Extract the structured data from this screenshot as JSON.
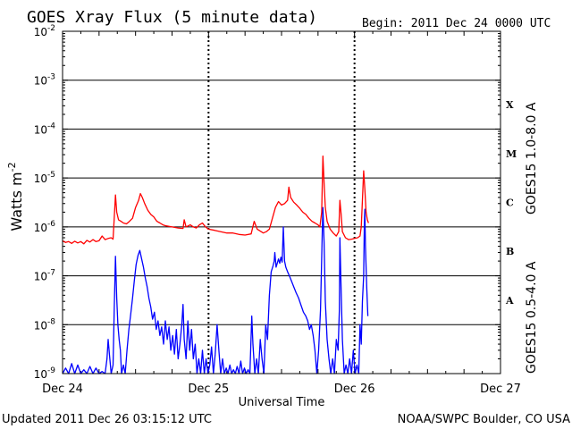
{
  "title": "GOES Xray Flux (5 minute data)",
  "begin": "Begin:  2011 Dec 24 0000 UTC",
  "updated": "Updated 2011 Dec 26 03:15:12 UTC",
  "credit": "NOAA/SWPC Boulder, CO USA",
  "colors": {
    "long_channel": "#ff0000",
    "short_channel": "#0000ff",
    "axes": "#000000"
  },
  "chart_data": {
    "type": "line",
    "title": "GOES Xray Flux (5 minute data)",
    "xlabel": "Universal Time",
    "ylabel": "Watts m",
    "ylabel_sup": "-2",
    "yscale": "log",
    "ylim": [
      1e-09,
      0.01
    ],
    "xlim_hours": [
      0,
      72
    ],
    "x_unit": "hours since 2011 Dec 24 0000 UTC",
    "y_ticks": [
      {
        "value": 1e-09,
        "base": "10",
        "exp": "-9"
      },
      {
        "value": 1e-08,
        "base": "10",
        "exp": "-8"
      },
      {
        "value": 1e-07,
        "base": "10",
        "exp": "-7"
      },
      {
        "value": 1e-06,
        "base": "10",
        "exp": "-6"
      },
      {
        "value": 1e-05,
        "base": "10",
        "exp": "-5"
      },
      {
        "value": 0.0001,
        "base": "10",
        "exp": "-4"
      },
      {
        "value": 0.001,
        "base": "10",
        "exp": "-3"
      },
      {
        "value": 0.01,
        "base": "10",
        "exp": "-2"
      }
    ],
    "x_ticks": [
      {
        "hour": 0,
        "label": "Dec 24"
      },
      {
        "hour": 24,
        "label": "Dec 25"
      },
      {
        "hour": 48,
        "label": "Dec 26"
      },
      {
        "hour": 72,
        "label": "Dec 27"
      }
    ],
    "flare_classes": [
      {
        "label": "A",
        "value": 1e-08
      },
      {
        "label": "B",
        "value": 1e-07
      },
      {
        "label": "C",
        "value": 1e-06
      },
      {
        "label": "M",
        "value": 1e-05
      },
      {
        "label": "X",
        "value": 0.0001
      }
    ],
    "grid": "horizontal lines at each decade; dashed day separators",
    "series": [
      {
        "name": "GOES15 1.0-8.0 A",
        "color": "#ff0000",
        "points": [
          [
            0.0,
            5.2e-07
          ],
          [
            0.5,
            4.8e-07
          ],
          [
            1.0,
            5e-07
          ],
          [
            1.5,
            4.6e-07
          ],
          [
            2.0,
            5.1e-07
          ],
          [
            2.5,
            4.7e-07
          ],
          [
            3.0,
            5e-07
          ],
          [
            3.5,
            4.5e-07
          ],
          [
            4.0,
            5.3e-07
          ],
          [
            4.5,
            4.9e-07
          ],
          [
            5.0,
            5.5e-07
          ],
          [
            5.5,
            5e-07
          ],
          [
            6.0,
            5.2e-07
          ],
          [
            6.5,
            6.5e-07
          ],
          [
            7.0,
            5.5e-07
          ],
          [
            7.5,
            5.8e-07
          ],
          [
            8.0,
            6e-07
          ],
          [
            8.3,
            5.6e-07
          ],
          [
            8.5,
            1.5e-06
          ],
          [
            8.7,
            4.5e-06
          ],
          [
            8.9,
            2e-06
          ],
          [
            9.2,
            1.4e-06
          ],
          [
            9.6,
            1.3e-06
          ],
          [
            10.0,
            1.2e-06
          ],
          [
            10.5,
            1.15e-06
          ],
          [
            11.0,
            1.3e-06
          ],
          [
            11.5,
            1.5e-06
          ],
          [
            12.0,
            2.5e-06
          ],
          [
            12.5,
            3.5e-06
          ],
          [
            12.8,
            4.8e-06
          ],
          [
            13.1,
            4e-06
          ],
          [
            13.5,
            3e-06
          ],
          [
            14.0,
            2.2e-06
          ],
          [
            14.5,
            1.8e-06
          ],
          [
            15.0,
            1.6e-06
          ],
          [
            15.5,
            1.3e-06
          ],
          [
            16.0,
            1.2e-06
          ],
          [
            16.5,
            1.1e-06
          ],
          [
            17.0,
            1.05e-06
          ],
          [
            18.0,
            1e-06
          ],
          [
            19.0,
            9.5e-07
          ],
          [
            19.8,
            9.3e-07
          ],
          [
            20.0,
            1.4e-06
          ],
          [
            20.3,
            1e-06
          ],
          [
            21.0,
            1.1e-06
          ],
          [
            21.5,
            1e-06
          ],
          [
            22.0,
            9.5e-07
          ],
          [
            22.5,
            1.1e-06
          ],
          [
            23.0,
            1.2e-06
          ],
          [
            23.5,
            1e-06
          ],
          [
            24.0,
            9e-07
          ],
          [
            25.0,
            8.5e-07
          ],
          [
            26.0,
            8e-07
          ],
          [
            27.0,
            7.5e-07
          ],
          [
            28.0,
            7.5e-07
          ],
          [
            29.0,
            7e-07
          ],
          [
            30.0,
            6.8e-07
          ],
          [
            31.0,
            7.2e-07
          ],
          [
            31.5,
            1.3e-06
          ],
          [
            32.0,
            9e-07
          ],
          [
            33.0,
            7.5e-07
          ],
          [
            33.5,
            8e-07
          ],
          [
            34.0,
            9e-07
          ],
          [
            34.5,
            1.5e-06
          ],
          [
            35.0,
            2.5e-06
          ],
          [
            35.5,
            3.3e-06
          ],
          [
            36.0,
            2.8e-06
          ],
          [
            36.5,
            3e-06
          ],
          [
            37.0,
            3.5e-06
          ],
          [
            37.2,
            6.5e-06
          ],
          [
            37.5,
            4e-06
          ],
          [
            38.0,
            3.2e-06
          ],
          [
            38.5,
            2.8e-06
          ],
          [
            39.0,
            2.4e-06
          ],
          [
            39.5,
            2e-06
          ],
          [
            40.0,
            1.8e-06
          ],
          [
            40.5,
            1.5e-06
          ],
          [
            41.0,
            1.3e-06
          ],
          [
            41.5,
            1.2e-06
          ],
          [
            42.0,
            1.1e-06
          ],
          [
            42.3,
            1e-06
          ],
          [
            42.6,
            2e-06
          ],
          [
            42.8,
            2.8e-05
          ],
          [
            43.0,
            8e-06
          ],
          [
            43.2,
            2.5e-06
          ],
          [
            43.5,
            1.3e-06
          ],
          [
            44.0,
            9e-07
          ],
          [
            44.5,
            7.5e-07
          ],
          [
            45.0,
            6.5e-07
          ],
          [
            45.4,
            8e-07
          ],
          [
            45.6,
            3.5e-06
          ],
          [
            45.8,
            1.8e-06
          ],
          [
            46.0,
            8e-07
          ],
          [
            46.5,
            6e-07
          ],
          [
            47.0,
            5.5e-07
          ],
          [
            47.5,
            5.6e-07
          ],
          [
            48.0,
            5.8e-07
          ],
          [
            48.5,
            6e-07
          ],
          [
            48.9,
            6.5e-07
          ],
          [
            49.1,
            1e-06
          ],
          [
            49.3,
            3.5e-06
          ],
          [
            49.5,
            1.4e-05
          ],
          [
            49.7,
            6e-06
          ],
          [
            49.9,
            2e-06
          ],
          [
            50.1,
            1.4e-06
          ],
          [
            50.3,
            1.2e-06
          ]
        ]
      },
      {
        "name": "GOES15 0.5-4.0 A",
        "color": "#0000ff",
        "points": [
          [
            0.0,
            1e-09
          ],
          [
            0.5,
            1.3e-09
          ],
          [
            1.0,
            1e-09
          ],
          [
            1.5,
            1.6e-09
          ],
          [
            2.0,
            1e-09
          ],
          [
            2.5,
            1.5e-09
          ],
          [
            3.0,
            1e-09
          ],
          [
            3.5,
            1.2e-09
          ],
          [
            4.0,
            1e-09
          ],
          [
            4.5,
            1.4e-09
          ],
          [
            5.0,
            1e-09
          ],
          [
            5.5,
            1.3e-09
          ],
          [
            6.0,
            1e-09
          ],
          [
            6.5,
            1.1e-09
          ],
          [
            7.0,
            1e-09
          ],
          [
            7.3,
            2e-09
          ],
          [
            7.5,
            5e-09
          ],
          [
            7.7,
            2.5e-09
          ],
          [
            8.0,
            1e-09
          ],
          [
            8.3,
            1.5e-09
          ],
          [
            8.5,
            2e-08
          ],
          [
            8.7,
            2.5e-07
          ],
          [
            8.9,
            3.5e-08
          ],
          [
            9.1,
            1e-08
          ],
          [
            9.3,
            5e-09
          ],
          [
            9.5,
            3e-09
          ],
          [
            9.7,
            1e-09
          ],
          [
            10.0,
            1.5e-09
          ],
          [
            10.3,
            1e-09
          ],
          [
            10.6,
            3e-09
          ],
          [
            10.9,
            8e-09
          ],
          [
            11.2,
            1.6e-08
          ],
          [
            11.5,
            3.5e-08
          ],
          [
            11.8,
            8e-08
          ],
          [
            12.1,
            1.7e-07
          ],
          [
            12.4,
            2.6e-07
          ],
          [
            12.7,
            3.3e-07
          ],
          [
            13.0,
            2.2e-07
          ],
          [
            13.3,
            1.5e-07
          ],
          [
            13.6,
            9e-08
          ],
          [
            13.9,
            6e-08
          ],
          [
            14.2,
            3.5e-08
          ],
          [
            14.5,
            2.3e-08
          ],
          [
            14.8,
            1.3e-08
          ],
          [
            15.1,
            1.8e-08
          ],
          [
            15.4,
            8e-09
          ],
          [
            15.7,
            1.2e-08
          ],
          [
            16.0,
            6e-09
          ],
          [
            16.3,
            9e-09
          ],
          [
            16.6,
            4e-09
          ],
          [
            16.9,
            1.2e-08
          ],
          [
            17.2,
            5e-09
          ],
          [
            17.5,
            9e-09
          ],
          [
            17.8,
            3e-09
          ],
          [
            18.1,
            6e-09
          ],
          [
            18.4,
            2.5e-09
          ],
          [
            18.7,
            8e-09
          ],
          [
            19.0,
            2e-09
          ],
          [
            19.3,
            4e-09
          ],
          [
            19.6,
            1e-08
          ],
          [
            19.8,
            2.6e-08
          ],
          [
            20.0,
            5e-09
          ],
          [
            20.3,
            2e-09
          ],
          [
            20.6,
            1.2e-08
          ],
          [
            20.9,
            3e-09
          ],
          [
            21.2,
            8e-09
          ],
          [
            21.5,
            2e-09
          ],
          [
            21.8,
            4e-09
          ],
          [
            22.1,
            1e-09
          ],
          [
            22.4,
            2e-09
          ],
          [
            22.7,
            1e-09
          ],
          [
            23.0,
            3e-09
          ],
          [
            23.3,
            1e-09
          ],
          [
            23.6,
            2e-09
          ],
          [
            23.9,
            1e-09
          ],
          [
            24.2,
            1.5e-09
          ],
          [
            24.5,
            3.5e-09
          ],
          [
            24.8,
            1e-09
          ],
          [
            25.1,
            2.5e-09
          ],
          [
            25.4,
            1e-08
          ],
          [
            25.7,
            3e-09
          ],
          [
            26.0,
            1e-09
          ],
          [
            26.3,
            2e-09
          ],
          [
            26.6,
            1e-09
          ],
          [
            26.9,
            1.3e-09
          ],
          [
            27.2,
            1e-09
          ],
          [
            27.5,
            1.5e-09
          ],
          [
            27.8,
            1e-09
          ],
          [
            28.1,
            1.2e-09
          ],
          [
            28.4,
            1e-09
          ],
          [
            28.7,
            1.4e-09
          ],
          [
            29.0,
            1e-09
          ],
          [
            29.3,
            1.8e-09
          ],
          [
            29.6,
            1e-09
          ],
          [
            29.9,
            1.3e-09
          ],
          [
            30.2,
            1e-09
          ],
          [
            30.5,
            1.2e-09
          ],
          [
            30.8,
            1e-09
          ],
          [
            31.1,
            1.5e-08
          ],
          [
            31.3,
            4e-09
          ],
          [
            31.6,
            1e-09
          ],
          [
            31.9,
            2e-09
          ],
          [
            32.2,
            1e-09
          ],
          [
            32.5,
            5e-09
          ],
          [
            32.8,
            2e-09
          ],
          [
            33.1,
            1e-09
          ],
          [
            33.4,
            1e-08
          ],
          [
            33.7,
            5e-09
          ],
          [
            34.0,
            4e-08
          ],
          [
            34.3,
            1.2e-07
          ],
          [
            34.6,
            1.6e-07
          ],
          [
            34.8,
            2e-07
          ],
          [
            34.9,
            3e-07
          ],
          [
            35.1,
            1.5e-07
          ],
          [
            35.3,
            1.8e-07
          ],
          [
            35.5,
            2.2e-07
          ],
          [
            35.7,
            1.8e-07
          ],
          [
            35.9,
            2.4e-07
          ],
          [
            36.1,
            1.9e-07
          ],
          [
            36.3,
            1e-06
          ],
          [
            36.5,
            2e-07
          ],
          [
            36.7,
            1.5e-07
          ],
          [
            37.0,
            1.2e-07
          ],
          [
            37.3,
            1e-07
          ],
          [
            37.6,
            8e-08
          ],
          [
            38.0,
            6e-08
          ],
          [
            38.4,
            4.5e-08
          ],
          [
            38.8,
            3.5e-08
          ],
          [
            39.2,
            2.5e-08
          ],
          [
            39.6,
            1.8e-08
          ],
          [
            40.0,
            1.5e-08
          ],
          [
            40.3,
            1.2e-08
          ],
          [
            40.6,
            8e-09
          ],
          [
            40.9,
            1e-08
          ],
          [
            41.2,
            6e-09
          ],
          [
            41.5,
            3e-09
          ],
          [
            41.8,
            1e-09
          ],
          [
            42.1,
            3e-09
          ],
          [
            42.4,
            2e-08
          ],
          [
            42.7,
            8e-07
          ],
          [
            42.8,
            2.5e-06
          ],
          [
            43.0,
            5e-07
          ],
          [
            43.2,
            3e-08
          ],
          [
            43.5,
            5e-09
          ],
          [
            43.8,
            2e-09
          ],
          [
            44.1,
            1e-09
          ],
          [
            44.4,
            2e-09
          ],
          [
            44.7,
            1e-09
          ],
          [
            45.0,
            5e-09
          ],
          [
            45.3,
            3e-09
          ],
          [
            45.5,
            2e-08
          ],
          [
            45.6,
            6e-07
          ],
          [
            45.8,
            5e-08
          ],
          [
            46.0,
            5e-09
          ],
          [
            46.3,
            1e-09
          ],
          [
            46.6,
            1.5e-09
          ],
          [
            46.9,
            1e-09
          ],
          [
            47.2,
            2e-09
          ],
          [
            47.5,
            1e-09
          ],
          [
            47.8,
            3e-09
          ],
          [
            48.1,
            1e-09
          ],
          [
            48.4,
            1.5e-09
          ],
          [
            48.7,
            1e-09
          ],
          [
            48.9,
            1e-08
          ],
          [
            49.1,
            4e-09
          ],
          [
            49.3,
            3e-08
          ],
          [
            49.5,
            1e-07
          ],
          [
            49.6,
            1e-06
          ],
          [
            49.7,
            2.3e-06
          ],
          [
            49.8,
            4e-07
          ],
          [
            50.0,
            6e-08
          ],
          [
            50.2,
            1.5e-08
          ]
        ]
      }
    ]
  }
}
